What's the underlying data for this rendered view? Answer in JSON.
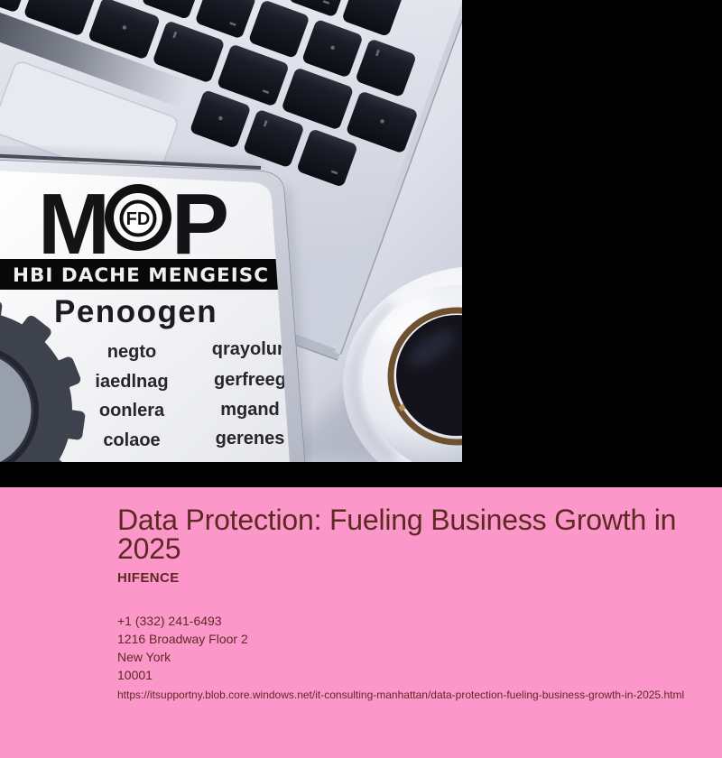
{
  "photo": {
    "tablet": {
      "logo_left": "M",
      "logo_badge": "FD",
      "logo_right": "P",
      "banner": "HBI DACHE MENGEISC",
      "wordmark": "Penoogen",
      "words_left": [
        "negto",
        "iaedlnag",
        "oonlera",
        "colaoe"
      ],
      "words_right": [
        "qrayolun",
        "gerfreeg",
        "mgand",
        "gerenes"
      ]
    }
  },
  "info": {
    "title": "Data Protection: Fueling Business Growth in 2025",
    "company": "HIFENCE",
    "phone": "+1 (332) 241-6493",
    "address": "1216 Broadway Floor 2",
    "city": "New York",
    "zip": "10001",
    "url": "https://itsupportny.blob.core.windows.net/it-consulting-manhattan/data-protection-fueling-business-growth-in-2025.html"
  },
  "colors": {
    "page_background": "#000000",
    "panel_pink": "#fc98c9",
    "text_maroon": "#5e2823",
    "coffee_dark": "#14131b",
    "coffee_rim_tan": "#b9905a"
  }
}
